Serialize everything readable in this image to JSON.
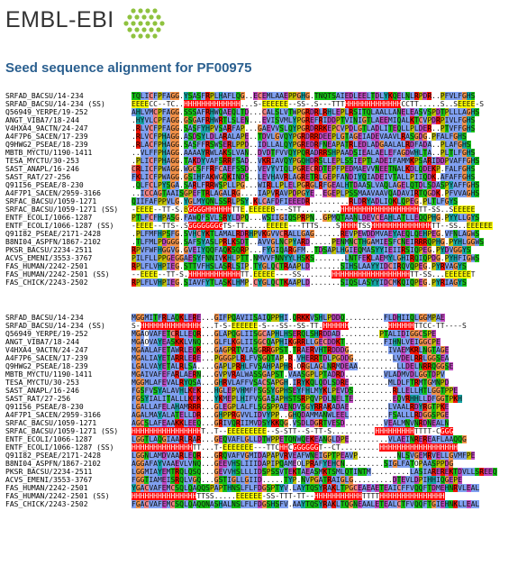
{
  "header": {
    "logo_text": "EMBL-EBI"
  },
  "title": "Seed sequence alignment for PF00975",
  "block1": [
    {
      "name": "SRFAD_BACSU/14-234",
      "seq": "TQLICFPFAGG.YSASFRPLHAFLQG..ECEMLAAEPPGHG.TNQTSAIEDLEELTDLYKQELNLRPDR..PFVLFGHS"
    },
    {
      "name": "SRFAD_BACSU/14-234 (SS)",
      "seq": "EEEECC--TC..HHHHHHHHHHHHH...S-EEEEEE--SS-.S---TTTHHHHHHHHHHHHHCCTT.....S..SEEEE-S"
    },
    {
      "name": "Q56949_YERPE/19-252",
      "seq": "AHLVMCPFAGG.SSSAFRHWQAEQLTD...CALSLVTWPGRDRLRHLEPLRSITQLAALLANELEASVSPDTPLLLAGHS"
    },
    {
      "name": "ANGT_VIBA7/18-244",
      "seq": ".HYVLCPFAGG.GSGAFRHWRTLSLEN...EVISVMLYPGREFRIDDPTVINIGTLAEEMIQALKTCVPDRPIVLFGHS"
    },
    {
      "name": "V4HXA4_9ACTN/24-247",
      "seq": ".RLVCFPFAGG.SASFYHPVSARFAP...GAEVVSLQYPGRDRRKEPCVPDLGTLADLITEQLLPLDER..PTVFFGHS"
    },
    {
      "name": "A4F7P6_SACEN/17-239",
      "seq": ".RLVCFPHAGG.ASDSYLDLARALAPE..TDVLGVQYPGRDRRDEEPLGTAGEIADEVAAVLRASGDG.PFALFGHS"
    },
    {
      "name": "Q9HWG2_PSEAE/18-239",
      "seq": ".RLACFPHAGG.SASFFRSWSERLPPD..IDLLALQYPGREDRFNEAPATRLEDLADGAALALRDFADA..PLAFGHS"
    },
    {
      "name": "MBTB_MYCTU/1190-1411",
      "seq": "..VLFFPHAGG.AAAAYRWLAKSLVAN..DVDTFVVQYPQRADRRSHPAADSIEALAELEFAGDWHLTA..PLTLFGHS"
    },
    {
      "name": "TESA_MYCTU/30-253",
      "seq": ".PLICFPHAGG.TAKDYVAFSRRFSAD..VKRIAVQYPGQHDRSLLEPLSSIEPTLADEIFAMMKPSARIDDPVAFFGHS"
    },
    {
      "name": "SAST_ANAPL/16-246",
      "seq": "CRLICFPWAGG.WGCSFFRFCAEFSSD..VEVYVIQLPGRECRDTEPFPEDMAEVVNEETNALKDLQDEKP.FALFGHS"
    },
    {
      "name": "SAST_RAT/27-256",
      "seq": "FKLICFPWAGG.GSIHFAKWGQKINDS..LEVHAVRLAGRETRLGEPFANDIYQIADEIVTALLPIIQDK.AFAFFGHS"
    },
    {
      "name": "Q91I56_PSEAE/8-230",
      "seq": ".QLFCLPYSGA.SARLFRRWSPLLPG...WIRLLPLELPGRGLRFGEALHTDAASLVAQLAGELQTDLSDASPYAFFGHS"
    },
    {
      "name": "A4F7P1_SACEN/2959-3166",
      "seq": "..ICCAGTAAISGPEFTRLAGALRG....IAPVRAVPDPGYE..EGEPLPSSMAAVAAVQADAVIRTQGDK.PFVVAGHS"
    },
    {
      "name": "SRFAC_BACSU/1059-1271",
      "seq": "QIIFAFPPVLG.YGLMYQNLSSRLPSY.KLCAFDFIEEEDR.........RLDRYADLIQKLQPEG.PLTLFGYS"
    },
    {
      "name": "SRFAC_BACSU/1059-1271 (SS)",
      "seq": "-EEEE--TT-S.BGGGGHHHHHHTTE.EEEEEB---STT.........HHHHHHHHHHHHHHHHHHTT-SS..SEEEEE"
    },
    {
      "name": "ENTF_ECOLI/1066-1287",
      "seq": "PTLFCFHPASG.FAWQFSVLSRYLDPQ...WSIIGIQSPRPN..GPMQTAANLDEVCEAHLATLLEQQPHG.PYYLLGYS"
    },
    {
      "name": "ENTF_ECOLI/1066-1287 (SS)",
      "seq": "-EEEE--TTS-.SGGGGGGGGTS-TT.....EEEEE---TTTS....SHHHHTSSHHHHHHHHHHHHHHTT--SS..EEEEEE"
    },
    {
      "name": "Q91I82_PSEAE/2171-2428",
      "seq": ".PLFMFHPSFG.SVHCYKTLAMALRDRHPVKGVVCRALLGAG......REVPEWDDMVAEYAEQLQEHPEG.VFNLAGWS"
    },
    {
      "name": "B8NI04_ASPFN/1867-2102",
      "seq": ".TLFMLPDGGG.SAFSYASLPRLKSDT..AVVGLNCPYARD.....PENMNCTHGAMIESFCNEIRRRQPHG.PYHLGGWS"
    },
    {
      "name": "PKSR_BACSU/2234-2511",
      "seq": "RPVFWFHGGVG.GVEIYQQFAQKSQRP...FYGIQARGFM..TDSAPLHGIEQMASYYIEIIRSIQPEG.PYDVGGYS"
    },
    {
      "name": "ACVS_EMENI/3553-3767",
      "seq": "PILFLLPPGEGGAESYFNNIVKHLPTT.NMVVFNNYYLHSKS.......LNTFEKLAEMYLGHIRQIQPDG.PYHFIGWS"
    },
    {
      "name": "FAS_HUMAN/2242-2501",
      "seq": "RPLFLVHPIEG.STTVFHSLASRLSIP.TYGLQCTRAAPLD.......SIHSLAAYYIDCIRQVQPEG.PYRVAGYS"
    },
    {
      "name": "FAS_HUMAN/2242-2501 (SS)",
      "seq": "--EEEE--TT-S.HHHHHHHHHHHHTT.EEEEE----SS.......HHHHHHHHHHHHHHHHHHTT-SS...EEEEEET"
    },
    {
      "name": "FAS_CHICK/2243-2502",
      "seq": "RPLFLVHPIEG.SIAVFYTLASKLHMP.CYGLQCTKAAPLD.......SIQSLASYYIDCMKQIQPEG.PYRIAGYS"
    }
  ],
  "block2": [
    {
      "name": "SRFAD_BACSU/14-234",
      "seq": "MGGMITFRLAQKLERE...GIFPQAVIISAIQPPHI.QRKKVSHLPDDQ.........FLDHIIQLGGMPAE"
    },
    {
      "name": "SRFAD_BACSU/14-234 (SS)",
      "seq": "S-HHHHHHHHHHHHHH...T-S-EEEEEE-S---SS--SS-TT.HHHHHH.........HHHHHHTTCC-TT----S"
    },
    {
      "name": "Q56949_YERPE/19-252",
      "seq": "MGAOVAFETCRLLEQR...GLAPQGLIISGCAPHLHSERQLSHRDDAD.........PTALIDIGGCSPE"
    },
    {
      "name": "ANGT_VIBA7/18-244",
      "seq": "MGAOVAYEASKKLVNQ...GLFLKGLIISGCQAPHIKGRRLLGECDDKT.........FIHNLVEIGGCPE"
    },
    {
      "name": "V4HXA4_9ACTN/24-247",
      "seq": "MGAALAFETAWRLEQK...GAGPRTVIASGRRGPST.TRAERVHTRDDDG.........IVAEMKRLNGTAGE"
    },
    {
      "name": "A4F7P6_SACEN/17-239",
      "seq": "MGALIAYETARRLERE...PGGGPLRLFVSGQTAP.R.VHERRTDLPGDDG.........LVDELRRLGGSEA"
    },
    {
      "name": "Q9HWG2_PSEAE/18-239",
      "seq": "LGALVAYETALRLSA....GAPLPRHLFVSAHPAPHR.ORGLAGLNRMDEAA.........LLDELNRRQGGSE"
    },
    {
      "name": "MBTB_MYCTU/1190-1411",
      "seq": "MGAIVAFEFARLAERN...GVPVRALWASSGAPST.VAASGPLPTADRD.........VLADMVDLGGTDPV"
    },
    {
      "name": "TESA_MYCTU/30-253",
      "seq": "MGGMLAFEVALRYQSA...GHRVLAFFVSACSAPGH.IRYKQLQDLSDRE.........MLDLFTRMTGMNPD"
    },
    {
      "name": "SAST_ANAPL/16-246",
      "seq": "FGSFVSYALAVHLKEK...HGLEPVHMFFSGSYGPHSEYFHLMYKLPEVDS.........RLLELLHTLGGTPPE"
    },
    {
      "name": "SAST_RAT/27-256",
      "seq": "FGSYIALITALLLKEK...YKMEPLHIFVSGASAPHSTSRPQVPDLNELTE.........EQVRHHLLDFGGTPKH"
    },
    {
      "name": "Q91I56_PSEAE/8-230",
      "seq": "LGALLAFELAHAMRRR...GLEGPLALFLSGSPPAENDVSGYRRAKADAE.........LVAALRDYRGTPKE"
    },
    {
      "name": "A4F7P1_SACEN/2959-3166",
      "seq": "AGALMAYALATELLDR...GHPPRGVVLIDVYPP..GHQDAMMANWLEEL.........FSALLLRDGGSPGE"
    },
    {
      "name": "SRFAC_BACSU/1059-1271",
      "seq": "AGCSLAFEAAKKLEEQ...GRIVQRIIMVDSYKKQG.VSDLDGRTVESD.........VEALMNVNRDNEALN"
    },
    {
      "name": "SRFAC_BACSU/1059-1271 (SS)",
      "seq": "HHHHHHHHHHHHHHHHT..T--EEEEEEEEE--S-STT--S-TT-S..........HHHHHHHHHTTTT-CGGG"
    },
    {
      "name": "ENTF_ECOLI/1066-1287",
      "seq": "LGGTLAQGIAARLRAR...GEQVAFLGLLDTWPPETQNWQEKEANGLDPE.........VLAEINREREAFLAAQQG"
    },
    {
      "name": "ENTF_ECOLI/1066-1287 (SS)",
      "seq": "HHHHHHHHHHHHHHTT...T-EEEEEEE---TTCHHCGGGGGGT--CT.........HHHHHHHHHHHHHHHHHH"
    },
    {
      "name": "Q91I82_PSEAE/2171-2428",
      "seq": "LGGNLAMDVAARLEQR...GRQVAFVGMIDAPAPVRVEAFWNEIGPTPEAVP.........NLSVGEMRVELLGVMFPE"
    },
    {
      "name": "B8NI04_ASPFN/1867-2102",
      "seq": "AGGAFAYVAAEVLVNQ...GEEVHSLIIIDAPIPQAMEOLPRAFYEHCN.........SIGLFATOPAASPPDG"
    },
    {
      "name": "PKSR_BACSU/2234-2511",
      "seq": "LGGMIAYEMTRQLQSQ...GEVVHSLLLIDSPSSVTEKTAEASMKTSMLQTINTM.........LASIAREREKTDVLLSREEQ"
    },
    {
      "name": "ACVS_EMENI/3553-3767",
      "seq": "FGGTIAMEISRQLVGQ...GSTIGLLGIID.....TYP.NVPGATRAIGLG.........DTEVLDPIHHIQGEPE"
    },
    {
      "name": "FAS_HUMAN/2242-2501",
      "seq": "YGACVAFEMCSQLQAQQSPAPTHNSLFLFDGSPTYV.LAYTQSYRAKLTPGCEAEAETEAICFFVQQFTDMEHNRVLEAL"
    },
    {
      "name": "FAS_HUMAN/2242-2501 (SS)",
      "seq": "HHHHHHHHHHHHHHHTTSS.....EEEEEE-SS-TTT-TT--HHHHHHHHHHHTTTTHHHHHHHHHHHHHHH"
    },
    {
      "name": "FAS_CHICK/2243-2502",
      "seq": "FGACVAFEMCSQLQAQQNASHALNSLFLFDGSHSFV.AAYTQSYRAKLTQGNEAALETEALCTFVQQFTGIEHNKLLEAL"
    }
  ]
}
